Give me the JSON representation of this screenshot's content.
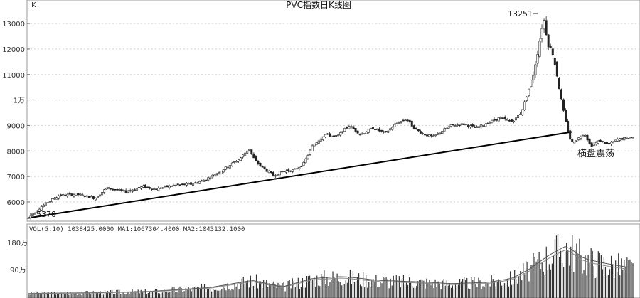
{
  "chart_data": [
    {
      "type": "candlestick",
      "title": "PVC指数日K线图",
      "unit_marker": "K",
      "y_ticks": [
        "6000",
        "7000",
        "8000",
        "9000",
        "1万",
        "11000",
        "12000",
        "13000"
      ],
      "y_tick_values": [
        6000,
        7000,
        8000,
        9000,
        10000,
        11000,
        12000,
        13000
      ],
      "ylim": [
        5300,
        13700
      ],
      "grid": true,
      "path": [
        [
          0,
          5370
        ],
        [
          0.02,
          5800
        ],
        [
          0.05,
          6250
        ],
        [
          0.08,
          6300
        ],
        [
          0.11,
          6150
        ],
        [
          0.13,
          6550
        ],
        [
          0.16,
          6400
        ],
        [
          0.19,
          6600
        ],
        [
          0.21,
          6500
        ],
        [
          0.24,
          6650
        ],
        [
          0.27,
          6700
        ],
        [
          0.29,
          6850
        ],
        [
          0.31,
          7100
        ],
        [
          0.33,
          7400
        ],
        [
          0.35,
          7700
        ],
        [
          0.365,
          8100
        ],
        [
          0.375,
          7600
        ],
        [
          0.39,
          7300
        ],
        [
          0.405,
          7050
        ],
        [
          0.42,
          7200
        ],
        [
          0.44,
          7250
        ],
        [
          0.455,
          7500
        ],
        [
          0.47,
          8200
        ],
        [
          0.49,
          8650
        ],
        [
          0.51,
          8550
        ],
        [
          0.53,
          9000
        ],
        [
          0.55,
          8650
        ],
        [
          0.57,
          8900
        ],
        [
          0.59,
          8700
        ],
        [
          0.61,
          9100
        ],
        [
          0.625,
          9250
        ],
        [
          0.64,
          8850
        ],
        [
          0.655,
          8650
        ],
        [
          0.67,
          8550
        ],
        [
          0.685,
          8800
        ],
        [
          0.7,
          9000
        ],
        [
          0.72,
          9050
        ],
        [
          0.74,
          8900
        ],
        [
          0.76,
          9100
        ],
        [
          0.78,
          9300
        ],
        [
          0.8,
          9150
        ],
        [
          0.815,
          9500
        ],
        [
          0.825,
          10200
        ],
        [
          0.835,
          11000
        ],
        [
          0.845,
          12200
        ],
        [
          0.852,
          13251
        ],
        [
          0.86,
          12200
        ],
        [
          0.868,
          11800
        ],
        [
          0.876,
          10800
        ],
        [
          0.884,
          9700
        ],
        [
          0.89,
          9000
        ],
        [
          0.898,
          8300
        ],
        [
          0.91,
          8500
        ],
        [
          0.92,
          8700
        ],
        [
          0.93,
          8200
        ],
        [
          0.945,
          8400
        ],
        [
          0.96,
          8250
        ],
        [
          0.975,
          8450
        ],
        [
          1.0,
          8550
        ]
      ],
      "volume_path": [
        [
          0,
          0.07
        ],
        [
          0.1,
          0.08
        ],
        [
          0.2,
          0.1
        ],
        [
          0.3,
          0.16
        ],
        [
          0.37,
          0.27
        ],
        [
          0.42,
          0.17
        ],
        [
          0.47,
          0.3
        ],
        [
          0.52,
          0.33
        ],
        [
          0.58,
          0.27
        ],
        [
          0.64,
          0.25
        ],
        [
          0.7,
          0.22
        ],
        [
          0.76,
          0.24
        ],
        [
          0.8,
          0.3
        ],
        [
          0.83,
          0.45
        ],
        [
          0.86,
          0.65
        ],
        [
          0.89,
          0.8
        ],
        [
          0.92,
          0.6
        ],
        [
          0.96,
          0.52
        ],
        [
          1.0,
          0.46
        ]
      ],
      "annotations": {
        "start_low": "5370",
        "peak_high": "13251",
        "range_note": "横盘震荡"
      },
      "trendline": {
        "from": [
          0,
          5370
        ],
        "to": [
          0.9,
          8750
        ]
      },
      "volume": {
        "legend": "VOL(5,10) 1038425.0000 MA1:1067304.4000 MA2:1043132.1000",
        "y_ticks": [
          "90万",
          "180万"
        ]
      }
    }
  ]
}
